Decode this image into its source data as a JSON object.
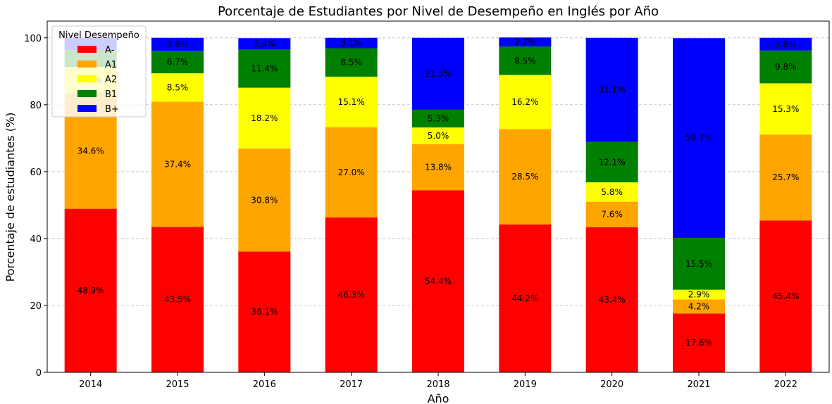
{
  "chart_data": {
    "type": "bar",
    "stacked": true,
    "title": "Porcentaje de Estudiantes por Nivel de Desempeño en Inglés por Año",
    "xlabel": "Año",
    "ylabel": "Porcentaje de estudiantes (%)",
    "ylim": [
      0,
      105
    ],
    "yticks": [
      0,
      20,
      40,
      60,
      80,
      100
    ],
    "grid": "y-dashed",
    "categories": [
      "2014",
      "2015",
      "2016",
      "2017",
      "2018",
      "2019",
      "2020",
      "2021",
      "2022"
    ],
    "legend": {
      "title": "Nivel Desempeño",
      "placement": "top-left"
    },
    "series": [
      {
        "name": "A-",
        "color": "#ff0000",
        "values": [
          48.9,
          43.5,
          36.1,
          46.3,
          54.4,
          44.2,
          43.4,
          17.6,
          45.4
        ],
        "labels": [
          "48.9%",
          "43.5%",
          "36.1%",
          "46.3%",
          "54.4%",
          "44.2%",
          "43.4%",
          "17.6%",
          "45.4%"
        ]
      },
      {
        "name": "A1",
        "color": "#ffa500",
        "values": [
          34.6,
          37.4,
          30.8,
          27.0,
          13.8,
          28.5,
          7.6,
          4.2,
          25.7
        ],
        "labels": [
          "34.6%",
          "37.4%",
          "30.8%",
          "27.0%",
          "13.8%",
          "28.5%",
          "7.6%",
          "4.2%",
          "25.7%"
        ]
      },
      {
        "name": "A2",
        "color": "#ffff00",
        "values": [
          7.8,
          8.5,
          18.2,
          15.1,
          5.0,
          16.2,
          5.8,
          2.9,
          15.3
        ],
        "labels": [
          "7.8%",
          "8.5%",
          "18.2%",
          "15.1%",
          "5.0%",
          "16.2%",
          "5.8%",
          "2.9%",
          "15.3%"
        ]
      },
      {
        "name": "B1",
        "color": "#008000",
        "values": [
          5.1,
          6.7,
          11.4,
          8.5,
          5.3,
          8.5,
          12.1,
          15.5,
          9.8
        ],
        "labels": [
          "",
          "6.7%",
          "11.4%",
          "8.5%",
          "5.3%",
          "8.5%",
          "12.1%",
          "15.5%",
          "9.8%"
        ]
      },
      {
        "name": "B+",
        "color": "#0000ff",
        "values": [
          3.6,
          3.9,
          3.4,
          3.1,
          21.5,
          2.7,
          31.1,
          59.7,
          3.8
        ],
        "labels": [
          "",
          "3.9%",
          "3.4%",
          "3.1%",
          "21.5%",
          "2.7%",
          "31.1%",
          "59.7%",
          "3.8%"
        ]
      }
    ]
  }
}
